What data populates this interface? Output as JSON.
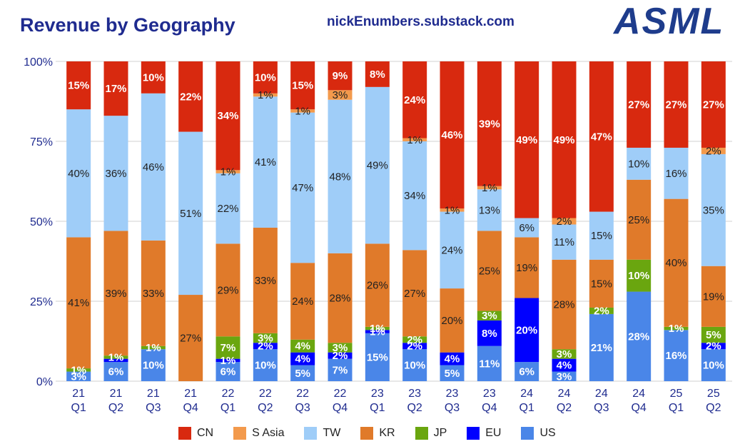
{
  "title": "Revenue by Geography",
  "source": "nickEnumbers.substack.com",
  "logo": "ASML",
  "chart_data": {
    "type": "bar",
    "stacked": true,
    "title": "Revenue by Geography",
    "categories": [
      [
        "21",
        "Q1"
      ],
      [
        "21",
        "Q2"
      ],
      [
        "21",
        "Q3"
      ],
      [
        "21",
        "Q4"
      ],
      [
        "22",
        "Q1"
      ],
      [
        "22",
        "Q2"
      ],
      [
        "22",
        "Q3"
      ],
      [
        "22",
        "Q4"
      ],
      [
        "23",
        "Q1"
      ],
      [
        "23",
        "Q2"
      ],
      [
        "23",
        "Q3"
      ],
      [
        "23",
        "Q4"
      ],
      [
        "24",
        "Q1"
      ],
      [
        "24",
        "Q2"
      ],
      [
        "24",
        "Q3"
      ],
      [
        "24",
        "Q4"
      ],
      [
        "25",
        "Q1"
      ],
      [
        "25",
        "Q2"
      ]
    ],
    "ylim": [
      0,
      100
    ],
    "yticks": [
      "0%",
      "25%",
      "50%",
      "75%",
      "100%"
    ],
    "grid": true,
    "legend_position": "bottom",
    "series": [
      {
        "name": "US",
        "color": "#4a86e8",
        "values": [
          3,
          6,
          10,
          0,
          6,
          10,
          5,
          7,
          15,
          10,
          5,
          11,
          6,
          3,
          21,
          28,
          16,
          10
        ],
        "labels": [
          "3%",
          "6%",
          "10%",
          "",
          "6%",
          "10%",
          "5%",
          "7%",
          "15%",
          "10%",
          "5%",
          "11%",
          "6%",
          "3%",
          "21%",
          "28%",
          "16%",
          "10%"
        ]
      },
      {
        "name": "EU",
        "color": "#0000ff",
        "values": [
          0,
          1,
          0,
          0,
          1,
          2,
          4,
          2,
          1,
          2,
          4,
          8,
          20,
          4,
          0,
          0,
          0,
          2
        ],
        "labels": [
          "",
          "",
          "",
          "",
          "1%",
          "2%",
          "4%",
          "2%",
          "1%",
          "2%",
          "4%",
          "8%",
          "20%",
          "4%",
          "",
          "",
          "",
          "2%"
        ]
      },
      {
        "name": "JP",
        "color": "#6aa60f",
        "values": [
          1,
          1,
          1,
          0,
          7,
          3,
          4,
          3,
          1,
          2,
          0,
          3,
          0,
          3,
          2,
          10,
          1,
          5
        ],
        "labels": [
          "1%",
          "1%",
          "1%",
          "",
          "7%",
          "3%",
          "4%",
          "3%",
          "1%",
          "2%",
          "",
          "3%",
          "",
          "3%",
          "2%",
          "10%",
          "1%",
          "5%"
        ]
      },
      {
        "name": "KR",
        "color": "#e07a2a",
        "values": [
          41,
          39,
          33,
          27,
          29,
          33,
          24,
          28,
          26,
          27,
          20,
          25,
          19,
          28,
          15,
          25,
          40,
          19
        ],
        "labels": [
          "41%",
          "39%",
          "33%",
          "27%",
          "29%",
          "33%",
          "24%",
          "28%",
          "26%",
          "27%",
          "20%",
          "25%",
          "19%",
          "28%",
          "15%",
          "25%",
          "40%",
          "19%"
        ]
      },
      {
        "name": "TW",
        "color": "#9fcdf8",
        "values": [
          40,
          36,
          46,
          51,
          22,
          41,
          47,
          48,
          49,
          34,
          24,
          13,
          6,
          11,
          15,
          10,
          16,
          35
        ],
        "labels": [
          "40%",
          "36%",
          "46%",
          "51%",
          "22%",
          "41%",
          "47%",
          "48%",
          "49%",
          "34%",
          "24%",
          "13%",
          "6%",
          "11%",
          "15%",
          "10%",
          "16%",
          "35%"
        ]
      },
      {
        "name": "S Asia",
        "color": "#f39a4c",
        "values": [
          0,
          0,
          0,
          0,
          1,
          1,
          1,
          3,
          0,
          1,
          1,
          1,
          0,
          2,
          0,
          0,
          0,
          2
        ],
        "labels": [
          "",
          "",
          "",
          "",
          "1%",
          "1%",
          "1%",
          "3%",
          "",
          "1%",
          "1%",
          "1%",
          "",
          "2%",
          "",
          "",
          "",
          "2%"
        ]
      },
      {
        "name": "CN",
        "color": "#d8290f",
        "values": [
          15,
          17,
          10,
          22,
          34,
          10,
          15,
          9,
          8,
          24,
          46,
          39,
          49,
          49,
          47,
          27,
          27,
          27
        ],
        "labels": [
          "15%",
          "17%",
          "10%",
          "22%",
          "34%",
          "10%",
          "15%",
          "9%",
          "8%",
          "24%",
          "46%",
          "39%",
          "49%",
          "49%",
          "47%",
          "27%",
          "27%",
          "27%"
        ]
      }
    ],
    "legend_order": [
      "CN",
      "S Asia",
      "TW",
      "KR",
      "JP",
      "EU",
      "US"
    ]
  }
}
